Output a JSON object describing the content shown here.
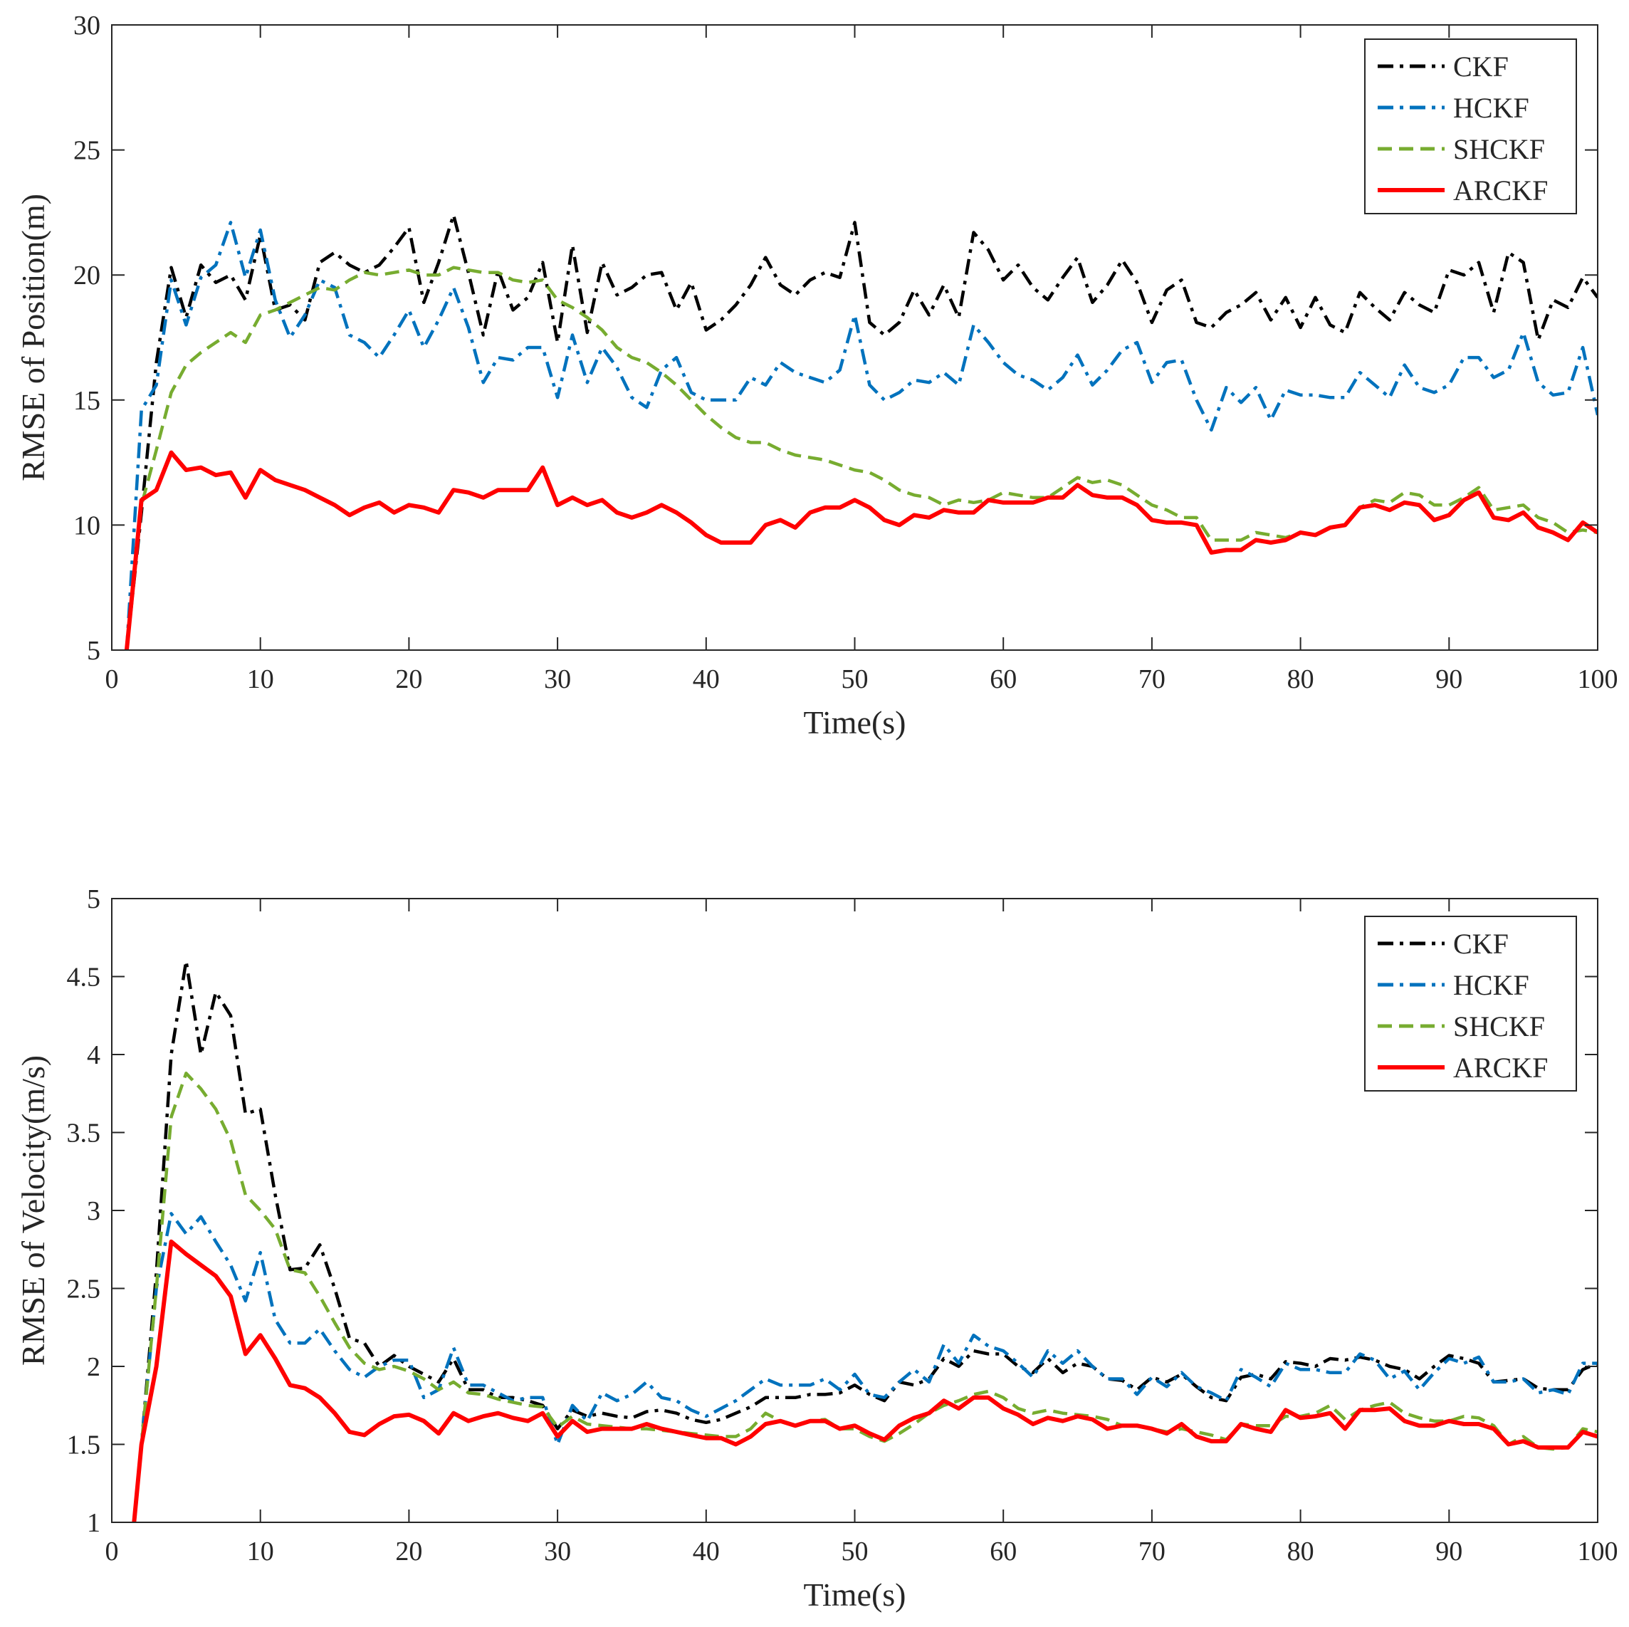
{
  "chart_data": [
    {
      "type": "line",
      "title": "",
      "xlabel": "Time(s)",
      "ylabel": "RMSE of Position(m)",
      "xlim": [
        0,
        100
      ],
      "ylim": [
        5,
        30
      ],
      "xticks": [
        "0",
        "10",
        "20",
        "30",
        "40",
        "50",
        "60",
        "70",
        "80",
        "90",
        "100"
      ],
      "yticks": [
        "5",
        "10",
        "15",
        "20",
        "25",
        "30"
      ],
      "legend": "top-right",
      "x": [
        1,
        2,
        3,
        4,
        5,
        6,
        7,
        8,
        9,
        10,
        11,
        12,
        13,
        14,
        15,
        16,
        17,
        18,
        19,
        20,
        21,
        22,
        23,
        24,
        25,
        26,
        27,
        28,
        29,
        30,
        31,
        32,
        33,
        34,
        35,
        36,
        37,
        38,
        39,
        40,
        41,
        42,
        43,
        44,
        45,
        46,
        47,
        48,
        49,
        50,
        51,
        52,
        53,
        54,
        55,
        56,
        57,
        58,
        59,
        60,
        61,
        62,
        63,
        64,
        65,
        66,
        67,
        68,
        69,
        70,
        71,
        72,
        73,
        74,
        75,
        76,
        77,
        78,
        79,
        80,
        81,
        82,
        83,
        84,
        85,
        86,
        87,
        88,
        89,
        90,
        91,
        92,
        93,
        94,
        95,
        96,
        97,
        98,
        99,
        100
      ],
      "series": [
        {
          "name": "CKF",
          "color": "#000000",
          "dash": "dashdot",
          "values": [
            5,
            10.5,
            16.5,
            20.3,
            18.3,
            20.4,
            19.7,
            20.0,
            19.0,
            21.6,
            18.6,
            18.8,
            18.2,
            20.5,
            20.9,
            20.4,
            20.1,
            20.4,
            21.1,
            21.9,
            18.9,
            20.5,
            22.4,
            20.1,
            17.6,
            20.2,
            18.6,
            19.1,
            20.5,
            17.3,
            21.2,
            17.7,
            20.5,
            19.2,
            19.5,
            20.0,
            20.1,
            18.6,
            19.7,
            17.8,
            18.2,
            18.8,
            19.6,
            20.7,
            19.6,
            19.2,
            19.8,
            20.1,
            19.9,
            22.1,
            18.1,
            17.6,
            18.1,
            19.4,
            18.4,
            19.6,
            18.3,
            21.7,
            21.0,
            19.8,
            20.4,
            19.5,
            19.0,
            19.9,
            20.7,
            18.9,
            19.6,
            20.6,
            19.7,
            18.1,
            19.4,
            19.8,
            18.1,
            17.9,
            18.5,
            18.8,
            19.3,
            18.2,
            19.1,
            17.9,
            19.1,
            18.0,
            17.7,
            19.3,
            18.7,
            18.2,
            19.3,
            18.8,
            18.5,
            20.2,
            20.0,
            20.5,
            18.5,
            20.9,
            20.5,
            17.4,
            19.0,
            18.7,
            19.9,
            19.1
          ]
        },
        {
          "name": "HCKF",
          "color": "#0072BD",
          "dash": "dashdot",
          "values": [
            5,
            14.6,
            15.6,
            19.8,
            18.0,
            19.9,
            20.4,
            22.1,
            19.9,
            21.8,
            19.0,
            17.5,
            18.4,
            19.8,
            19.5,
            17.6,
            17.3,
            16.7,
            17.6,
            18.6,
            17.1,
            18.2,
            19.5,
            17.9,
            15.7,
            16.7,
            16.6,
            17.1,
            17.1,
            15.1,
            17.6,
            15.7,
            17.1,
            16.3,
            15.1,
            14.7,
            16.2,
            16.7,
            15.3,
            15.0,
            15.0,
            15.0,
            15.9,
            15.6,
            16.5,
            16.1,
            15.9,
            15.7,
            16.2,
            18.4,
            15.6,
            15.0,
            15.3,
            15.8,
            15.7,
            16.1,
            15.6,
            18.0,
            17.3,
            16.5,
            16.0,
            15.8,
            15.4,
            15.9,
            16.8,
            15.6,
            16.2,
            17.0,
            17.3,
            15.7,
            16.5,
            16.6,
            15.0,
            13.8,
            15.5,
            14.9,
            15.5,
            14.2,
            15.4,
            15.2,
            15.2,
            15.1,
            15.1,
            16.1,
            15.6,
            15.1,
            16.4,
            15.5,
            15.3,
            15.6,
            16.7,
            16.7,
            15.9,
            16.2,
            17.7,
            15.7,
            15.2,
            15.3,
            17.1,
            14.4
          ]
        },
        {
          "name": "SHCKF",
          "color": "#77AC30",
          "dash": "dashed",
          "values": [
            5,
            10.8,
            13.0,
            15.3,
            16.4,
            16.9,
            17.3,
            17.7,
            17.3,
            18.4,
            18.6,
            18.9,
            19.2,
            19.5,
            19.4,
            19.8,
            20.1,
            20.0,
            20.1,
            20.2,
            20.0,
            20.0,
            20.3,
            20.2,
            20.1,
            20.1,
            19.8,
            19.7,
            19.8,
            19.0,
            18.7,
            18.3,
            17.8,
            17.1,
            16.7,
            16.5,
            16.1,
            15.6,
            15.0,
            14.4,
            13.9,
            13.5,
            13.3,
            13.3,
            13.0,
            12.8,
            12.7,
            12.6,
            12.4,
            12.2,
            12.1,
            11.8,
            11.4,
            11.2,
            11.1,
            10.8,
            11.0,
            10.9,
            11.0,
            11.3,
            11.2,
            11.1,
            11.1,
            11.5,
            11.9,
            11.7,
            11.8,
            11.6,
            11.2,
            10.8,
            10.6,
            10.3,
            10.3,
            9.4,
            9.4,
            9.4,
            9.7,
            9.6,
            9.5,
            9.7,
            9.6,
            9.9,
            10.0,
            10.7,
            11.0,
            10.9,
            11.3,
            11.2,
            10.8,
            10.8,
            11.1,
            11.5,
            10.6,
            10.7,
            10.8,
            10.3,
            10.1,
            9.7,
            9.8,
            9.7
          ]
        },
        {
          "name": "ARCKF",
          "color": "#FF0000",
          "dash": "solid",
          "values": [
            5,
            11.0,
            11.4,
            12.9,
            12.2,
            12.3,
            12.0,
            12.1,
            11.1,
            12.2,
            11.8,
            11.6,
            11.4,
            11.1,
            10.8,
            10.4,
            10.7,
            10.9,
            10.5,
            10.8,
            10.7,
            10.5,
            11.4,
            11.3,
            11.1,
            11.4,
            11.4,
            11.4,
            12.3,
            10.8,
            11.1,
            10.8,
            11.0,
            10.5,
            10.3,
            10.5,
            10.8,
            10.5,
            10.1,
            9.6,
            9.3,
            9.3,
            9.3,
            10.0,
            10.2,
            9.9,
            10.5,
            10.7,
            10.7,
            11.0,
            10.7,
            10.2,
            10.0,
            10.4,
            10.3,
            10.6,
            10.5,
            10.5,
            11.0,
            10.9,
            10.9,
            10.9,
            11.1,
            11.1,
            11.6,
            11.2,
            11.1,
            11.1,
            10.8,
            10.2,
            10.1,
            10.1,
            10.0,
            8.9,
            9.0,
            9.0,
            9.4,
            9.3,
            9.4,
            9.7,
            9.6,
            9.9,
            10.0,
            10.7,
            10.8,
            10.6,
            10.9,
            10.8,
            10.2,
            10.4,
            11.0,
            11.3,
            10.3,
            10.2,
            10.5,
            9.9,
            9.7,
            9.4,
            10.1,
            9.7
          ]
        }
      ]
    },
    {
      "type": "line",
      "title": "",
      "xlabel": "Time(s)",
      "ylabel": "RMSE of Velocity(m/s)",
      "xlim": [
        0,
        100
      ],
      "ylim": [
        1,
        5
      ],
      "xticks": [
        "0",
        "10",
        "20",
        "30",
        "40",
        "50",
        "60",
        "70",
        "80",
        "90",
        "100"
      ],
      "yticks": [
        "1",
        "1.5",
        "2",
        "2.5",
        "3",
        "3.5",
        "4",
        "4.5",
        "5"
      ],
      "legend": "top-right",
      "x": [
        1.5,
        2,
        3,
        4,
        5,
        6,
        7,
        8,
        9,
        10,
        11,
        12,
        13,
        14,
        15,
        16,
        17,
        18,
        19,
        20,
        21,
        22,
        23,
        24,
        25,
        26,
        27,
        28,
        29,
        30,
        31,
        32,
        33,
        34,
        35,
        36,
        37,
        38,
        39,
        40,
        41,
        42,
        43,
        44,
        45,
        46,
        47,
        48,
        49,
        50,
        51,
        52,
        53,
        54,
        55,
        56,
        57,
        58,
        59,
        60,
        61,
        62,
        63,
        64,
        65,
        66,
        67,
        68,
        69,
        70,
        71,
        72,
        73,
        74,
        75,
        76,
        77,
        78,
        79,
        80,
        81,
        82,
        83,
        84,
        85,
        86,
        87,
        88,
        89,
        90,
        91,
        92,
        93,
        94,
        95,
        96,
        97,
        98,
        99,
        100
      ],
      "series": [
        {
          "name": "CKF",
          "color": "#000000",
          "dash": "dashdot",
          "values": [
            1,
            1.5,
            2.6,
            4.0,
            4.6,
            4.0,
            4.4,
            4.25,
            3.62,
            3.65,
            3.1,
            2.62,
            2.63,
            2.78,
            2.5,
            2.18,
            2.15,
            2.0,
            2.07,
            2.0,
            1.95,
            1.9,
            2.05,
            1.85,
            1.85,
            1.8,
            1.8,
            1.78,
            1.75,
            1.6,
            1.72,
            1.68,
            1.7,
            1.68,
            1.67,
            1.71,
            1.72,
            1.7,
            1.66,
            1.64,
            1.66,
            1.7,
            1.74,
            1.8,
            1.8,
            1.8,
            1.82,
            1.82,
            1.83,
            1.88,
            1.82,
            1.78,
            1.9,
            1.88,
            1.92,
            2.05,
            2.0,
            2.1,
            2.08,
            2.08,
            2.0,
            1.96,
            2.05,
            1.96,
            2.02,
            2.0,
            1.92,
            1.91,
            1.85,
            1.93,
            1.9,
            1.95,
            1.87,
            1.8,
            1.78,
            1.93,
            1.95,
            1.92,
            2.03,
            2.02,
            2.0,
            2.05,
            2.04,
            2.06,
            2.04,
            2.0,
            1.98,
            1.92,
            2.0,
            2.07,
            2.05,
            2.02,
            1.9,
            1.91,
            1.92,
            1.86,
            1.85,
            1.85,
            1.98,
            2.02
          ]
        },
        {
          "name": "HCKF",
          "color": "#0072BD",
          "dash": "dashdot",
          "values": [
            1,
            1.5,
            2.5,
            2.98,
            2.85,
            2.96,
            2.8,
            2.65,
            2.42,
            2.73,
            2.3,
            2.15,
            2.15,
            2.24,
            2.1,
            1.98,
            1.93,
            2.0,
            2.04,
            2.04,
            1.8,
            1.85,
            2.12,
            1.88,
            1.88,
            1.83,
            1.78,
            1.8,
            1.8,
            1.5,
            1.75,
            1.65,
            1.83,
            1.78,
            1.82,
            1.9,
            1.8,
            1.78,
            1.72,
            1.68,
            1.73,
            1.78,
            1.85,
            1.92,
            1.88,
            1.88,
            1.88,
            1.92,
            1.85,
            1.95,
            1.82,
            1.8,
            1.9,
            1.98,
            1.9,
            2.14,
            2.02,
            2.2,
            2.13,
            2.1,
            2.02,
            1.93,
            2.1,
            2.02,
            2.1,
            2.0,
            1.92,
            1.92,
            1.82,
            1.93,
            1.87,
            1.96,
            1.87,
            1.83,
            1.78,
            1.98,
            1.93,
            1.87,
            2.02,
            1.98,
            1.98,
            1.96,
            1.96,
            2.08,
            2.04,
            1.92,
            1.97,
            1.85,
            1.96,
            2.05,
            2.02,
            2.06,
            1.9,
            1.9,
            1.92,
            1.83,
            1.85,
            1.82,
            2.02,
            2.02
          ]
        },
        {
          "name": "SHCKF",
          "color": "#77AC30",
          "dash": "dashed",
          "values": [
            1,
            1.5,
            2.5,
            3.6,
            3.88,
            3.78,
            3.65,
            3.45,
            3.1,
            3.0,
            2.88,
            2.62,
            2.6,
            2.45,
            2.28,
            2.12,
            2.02,
            1.98,
            2.0,
            1.97,
            1.92,
            1.85,
            1.9,
            1.83,
            1.82,
            1.79,
            1.77,
            1.75,
            1.74,
            1.61,
            1.68,
            1.63,
            1.62,
            1.61,
            1.6,
            1.6,
            1.59,
            1.58,
            1.57,
            1.56,
            1.55,
            1.55,
            1.6,
            1.7,
            1.65,
            1.62,
            1.65,
            1.66,
            1.6,
            1.6,
            1.55,
            1.52,
            1.57,
            1.63,
            1.7,
            1.75,
            1.78,
            1.82,
            1.84,
            1.8,
            1.73,
            1.7,
            1.72,
            1.7,
            1.69,
            1.68,
            1.66,
            1.62,
            1.62,
            1.6,
            1.58,
            1.6,
            1.58,
            1.56,
            1.53,
            1.63,
            1.62,
            1.62,
            1.68,
            1.68,
            1.7,
            1.75,
            1.66,
            1.72,
            1.75,
            1.77,
            1.7,
            1.67,
            1.65,
            1.65,
            1.68,
            1.67,
            1.62,
            1.5,
            1.55,
            1.48,
            1.47,
            1.48,
            1.6,
            1.58
          ]
        },
        {
          "name": "ARCKF",
          "color": "#FF0000",
          "dash": "solid",
          "values": [
            1,
            1.5,
            2.0,
            2.8,
            2.72,
            2.65,
            2.58,
            2.45,
            2.08,
            2.2,
            2.05,
            1.88,
            1.86,
            1.8,
            1.7,
            1.58,
            1.56,
            1.63,
            1.68,
            1.69,
            1.65,
            1.57,
            1.7,
            1.65,
            1.68,
            1.7,
            1.67,
            1.65,
            1.7,
            1.55,
            1.65,
            1.58,
            1.6,
            1.6,
            1.6,
            1.63,
            1.6,
            1.58,
            1.56,
            1.54,
            1.54,
            1.5,
            1.55,
            1.63,
            1.65,
            1.62,
            1.65,
            1.65,
            1.6,
            1.62,
            1.57,
            1.53,
            1.62,
            1.67,
            1.7,
            1.78,
            1.73,
            1.8,
            1.8,
            1.73,
            1.69,
            1.63,
            1.67,
            1.65,
            1.68,
            1.66,
            1.6,
            1.62,
            1.62,
            1.6,
            1.57,
            1.63,
            1.55,
            1.52,
            1.52,
            1.63,
            1.6,
            1.58,
            1.72,
            1.67,
            1.68,
            1.7,
            1.6,
            1.72,
            1.72,
            1.73,
            1.65,
            1.62,
            1.62,
            1.65,
            1.63,
            1.63,
            1.6,
            1.5,
            1.52,
            1.48,
            1.48,
            1.48,
            1.58,
            1.55
          ]
        }
      ]
    }
  ]
}
